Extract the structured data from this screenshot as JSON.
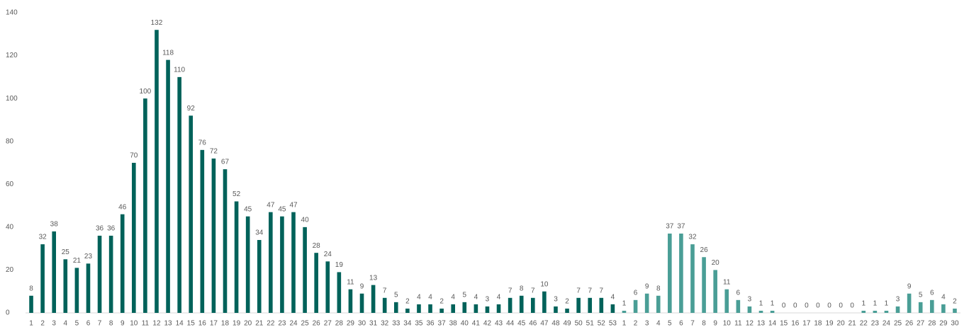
{
  "chart_data": {
    "type": "bar",
    "categories": [
      "1",
      "2",
      "3",
      "4",
      "5",
      "6",
      "7",
      "8",
      "9",
      "10",
      "11",
      "12",
      "13",
      "14",
      "15",
      "16",
      "17",
      "18",
      "19",
      "20",
      "21",
      "22",
      "23",
      "24",
      "25",
      "26",
      "27",
      "28",
      "29",
      "30",
      "31",
      "32",
      "33",
      "34",
      "35",
      "36",
      "37",
      "38",
      "40",
      "41",
      "42",
      "43",
      "44",
      "45",
      "46",
      "47",
      "48",
      "49",
      "50",
      "51",
      "52",
      "53",
      "1",
      "2",
      "3",
      "4",
      "5",
      "6",
      "7",
      "8",
      "9",
      "10",
      "11",
      "12",
      "13",
      "14",
      "15",
      "16",
      "17",
      "18",
      "19",
      "20",
      "21",
      "22",
      "23",
      "24",
      "25",
      "26",
      "27",
      "28",
      "29",
      "30"
    ],
    "values": [
      8,
      32,
      38,
      25,
      21,
      23,
      36,
      36,
      46,
      70,
      100,
      132,
      118,
      110,
      92,
      76,
      72,
      67,
      52,
      45,
      34,
      47,
      45,
      47,
      40,
      28,
      24,
      19,
      11,
      9,
      13,
      7,
      5,
      2,
      4,
      4,
      2,
      4,
      5,
      4,
      3,
      4,
      7,
      8,
      7,
      10,
      3,
      2,
      7,
      7,
      7,
      4,
      1,
      6,
      9,
      8,
      37,
      37,
      32,
      26,
      20,
      11,
      6,
      3,
      1,
      1,
      0,
      0,
      0,
      0,
      0,
      0,
      0,
      1,
      1,
      1,
      3,
      9,
      5,
      6,
      4,
      2
    ],
    "colors": [
      "#00625a",
      "#00625a",
      "#00625a",
      "#00625a",
      "#00625a",
      "#00625a",
      "#00625a",
      "#00625a",
      "#00625a",
      "#00625a",
      "#00625a",
      "#00625a",
      "#00625a",
      "#00625a",
      "#00625a",
      "#00625a",
      "#00625a",
      "#00625a",
      "#00625a",
      "#00625a",
      "#00625a",
      "#00625a",
      "#00625a",
      "#00625a",
      "#00625a",
      "#00625a",
      "#00625a",
      "#00625a",
      "#00625a",
      "#00625a",
      "#00625a",
      "#00625a",
      "#00625a",
      "#00625a",
      "#00625a",
      "#00625a",
      "#00625a",
      "#00625a",
      "#00625a",
      "#00625a",
      "#00625a",
      "#00625a",
      "#00625a",
      "#00625a",
      "#00625a",
      "#00625a",
      "#00625a",
      "#00625a",
      "#00625a",
      "#00625a",
      "#00625a",
      "#00625a",
      "#4a9e96",
      "#4a9e96",
      "#4a9e96",
      "#4a9e96",
      "#4a9e96",
      "#4a9e96",
      "#4a9e96",
      "#4a9e96",
      "#4a9e96",
      "#4a9e96",
      "#4a9e96",
      "#4a9e96",
      "#4a9e96",
      "#4a9e96",
      "#4a9e96",
      "#4a9e96",
      "#4a9e96",
      "#4a9e96",
      "#4a9e96",
      "#4a9e96",
      "#4a9e96",
      "#4a9e96",
      "#4a9e96",
      "#4a9e96",
      "#4a9e96",
      "#4a9e96",
      "#4a9e96",
      "#4a9e96",
      "#4a9e96",
      "#4a9e96"
    ],
    "ylim": [
      0,
      140
    ],
    "yticks": [
      0,
      20,
      40,
      60,
      80,
      100,
      120,
      140
    ],
    "grid": false
  }
}
